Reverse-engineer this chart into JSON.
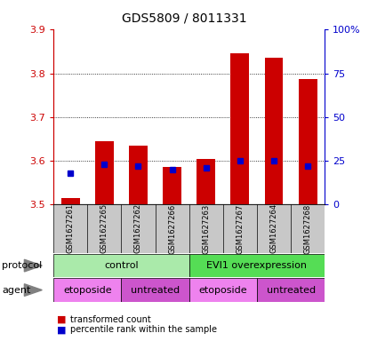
{
  "title": "GDS5809 / 8011331",
  "samples": [
    "GSM1627261",
    "GSM1627265",
    "GSM1627262",
    "GSM1627266",
    "GSM1627263",
    "GSM1627267",
    "GSM1627264",
    "GSM1627268"
  ],
  "transformed_counts": [
    3.515,
    3.645,
    3.635,
    3.585,
    3.603,
    3.845,
    3.835,
    3.787
  ],
  "percentile_ranks": [
    18,
    23,
    22,
    20,
    21,
    25,
    25,
    22
  ],
  "ylim_left": [
    3.5,
    3.9
  ],
  "ylim_right": [
    0,
    100
  ],
  "yticks_left": [
    3.5,
    3.6,
    3.7,
    3.8,
    3.9
  ],
  "yticks_right": [
    0,
    25,
    50,
    75,
    100
  ],
  "ytick_labels_right": [
    "0",
    "25",
    "50",
    "75",
    "100%"
  ],
  "protocol_groups": [
    {
      "label": "control",
      "start": 0,
      "end": 4,
      "color": "#aaeaaa"
    },
    {
      "label": "EVI1 overexpression",
      "start": 4,
      "end": 8,
      "color": "#55dd55"
    }
  ],
  "agent_groups": [
    {
      "label": "etoposide",
      "start": 0,
      "end": 2,
      "color": "#ee82ee"
    },
    {
      "label": "untreated",
      "start": 2,
      "end": 4,
      "color": "#cc55cc"
    },
    {
      "label": "etoposide",
      "start": 4,
      "end": 6,
      "color": "#ee82ee"
    },
    {
      "label": "untreated",
      "start": 6,
      "end": 8,
      "color": "#cc55cc"
    }
  ],
  "bar_color": "#cc0000",
  "dot_color": "#0000cc",
  "bar_width": 0.55,
  "sample_bg_color": "#c8c8c8",
  "protocol_label": "protocol",
  "agent_label": "agent",
  "legend_red_label": "transformed count",
  "legend_blue_label": "percentile rank within the sample",
  "left_axis_color": "#cc0000",
  "right_axis_color": "#0000cc"
}
